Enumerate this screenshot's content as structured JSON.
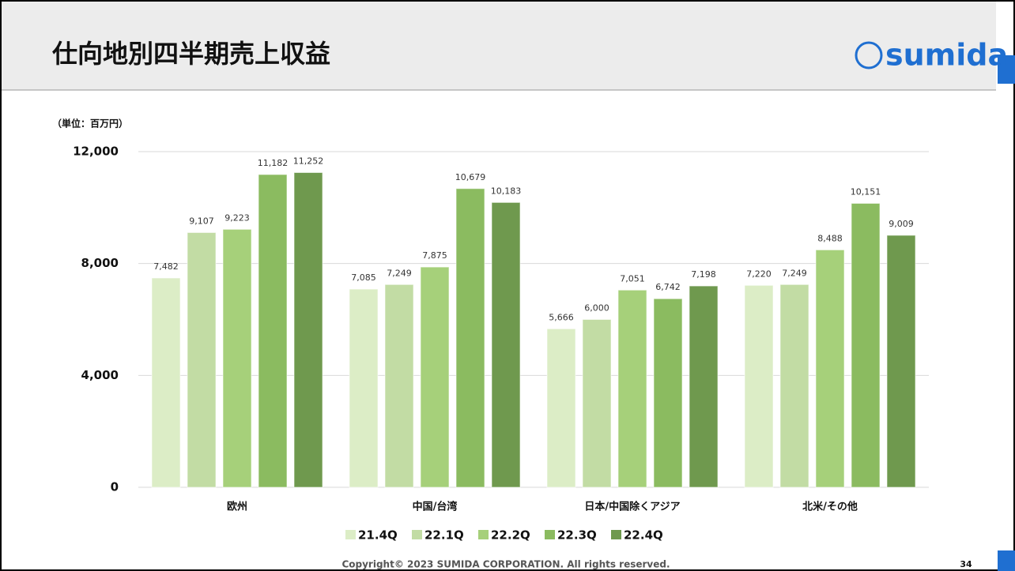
{
  "title": "仕向地別四半期売上収益",
  "logo": "sumida",
  "copyright": "Copyright© 2023 SUMIDA CORPORATION. All rights reserved.",
  "page_number": "34",
  "chart_data": {
    "type": "bar",
    "y_label": "（単位：百万円）",
    "categories": [
      "欧州",
      "中国/台湾",
      "日本/中国除くアジア",
      "北米/その他"
    ],
    "series": [
      {
        "name": "21.4Q",
        "color": "#dcedc6",
        "values": [
          7482,
          7085,
          5666,
          7220
        ],
        "value_labels": [
          "7,482",
          "7,085",
          "5,666",
          "7,220"
        ]
      },
      {
        "name": "22.1Q",
        "color": "#c2dca4",
        "values": [
          9107,
          7249,
          6000,
          7249
        ],
        "value_labels": [
          "9,107",
          "7,249",
          "6,000",
          "7,249"
        ]
      },
      {
        "name": "22.2Q",
        "color": "#a6d07a",
        "values": [
          9223,
          7875,
          7051,
          8488
        ],
        "value_labels": [
          "9,223",
          "7,875",
          "7,051",
          "8,488"
        ]
      },
      {
        "name": "22.3Q",
        "color": "#8bbb60",
        "values": [
          11182,
          10679,
          6742,
          10151
        ],
        "value_labels": [
          "11,182",
          "10,679",
          "6,742",
          "10,151"
        ]
      },
      {
        "name": "22.4Q",
        "color": "#6f994e",
        "values": [
          11252,
          10183,
          7198,
          9009
        ],
        "value_labels": [
          "11,252",
          "10,183",
          "7,198",
          "9,009"
        ]
      }
    ],
    "ylim": [
      0,
      12000
    ],
    "yticks": [
      0,
      {
        "value": 4000,
        "label": "4,000"
      },
      {
        "value": 8000,
        "label": "8,000"
      },
      {
        "value": 12000,
        "label": "12,000"
      }
    ],
    "grid": true
  }
}
